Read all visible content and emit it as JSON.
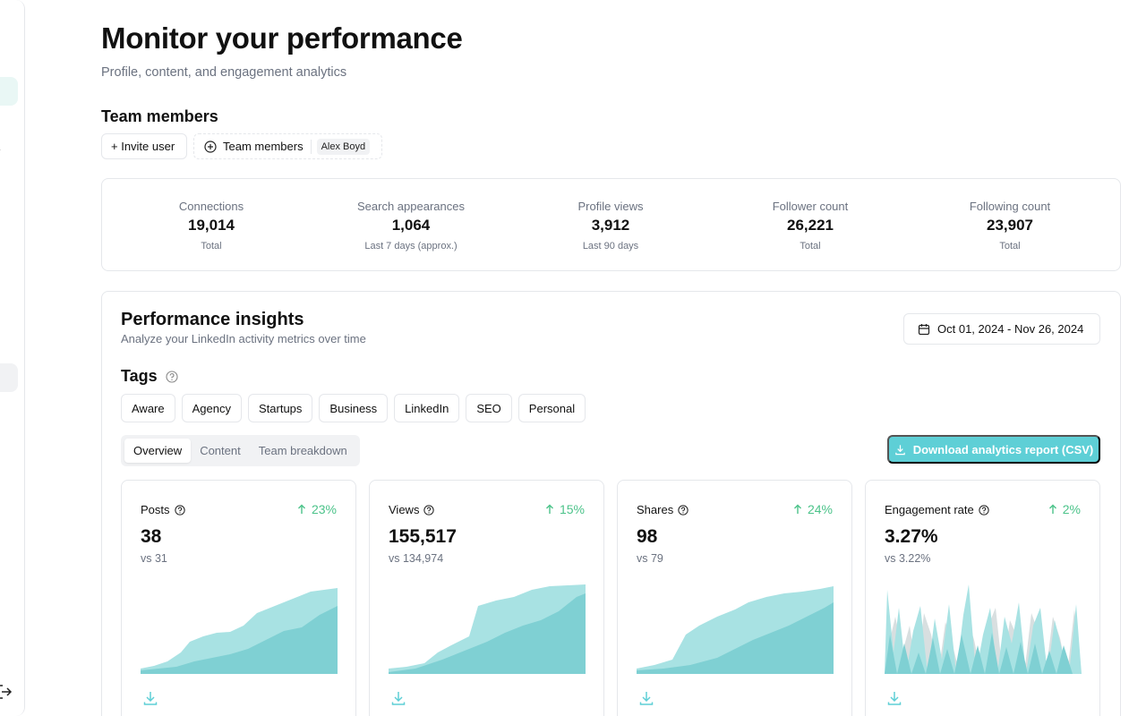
{
  "header": {
    "title": "Monitor your performance",
    "subtitle": "Profile, content, and engagement analytics"
  },
  "team": {
    "heading": "Team members",
    "invite_label": "+ Invite user",
    "filter_label": "Team members",
    "selected_member": "Alex Boyd"
  },
  "stats": [
    {
      "label": "Connections",
      "value": "19,014",
      "note": "Total"
    },
    {
      "label": "Search appearances",
      "value": "1,064",
      "note": "Last 7 days (approx.)"
    },
    {
      "label": "Profile views",
      "value": "3,912",
      "note": "Last 90 days"
    },
    {
      "label": "Follower count",
      "value": "26,221",
      "note": "Total"
    },
    {
      "label": "Following count",
      "value": "23,907",
      "note": "Total"
    }
  ],
  "insights": {
    "title": "Performance insights",
    "subtitle": "Analyze your LinkedIn activity metrics over time",
    "date_range": "Oct 01, 2024 - Nov 26, 2024",
    "tags_heading": "Tags",
    "tags": [
      "Aware",
      "Agency",
      "Startups",
      "Business",
      "LinkedIn",
      "SEO",
      "Personal"
    ],
    "tabs": [
      "Overview",
      "Content",
      "Team breakdown"
    ],
    "active_tab": "Overview",
    "download_label": "Download analytics report (CSV)"
  },
  "cards": [
    {
      "label": "Posts",
      "value": "38",
      "compare": "vs 31",
      "delta": "23%",
      "trend": "up"
    },
    {
      "label": "Views",
      "value": "155,517",
      "compare": "vs 134,974",
      "delta": "15%",
      "trend": "up"
    },
    {
      "label": "Shares",
      "value": "98",
      "compare": "vs 79",
      "delta": "24%",
      "trend": "up"
    },
    {
      "label": "Engagement rate",
      "value": "3.27%",
      "compare": "vs 3.22%",
      "delta": "2%",
      "trend": "up"
    }
  ],
  "colors": {
    "accent": "#5ecfd6",
    "area_light": "#a8e2e3",
    "area_dark": "#7fd0d3",
    "positive": "#4cc38a",
    "muted_text": "#6b7280",
    "border": "#e5e7eb"
  },
  "icons": {
    "help": "question-circle-icon",
    "trend": "arrow-up-icon",
    "download": "download-icon",
    "calendar": "calendar-icon",
    "add": "plus-circle-icon",
    "logout": "logout-icon"
  }
}
